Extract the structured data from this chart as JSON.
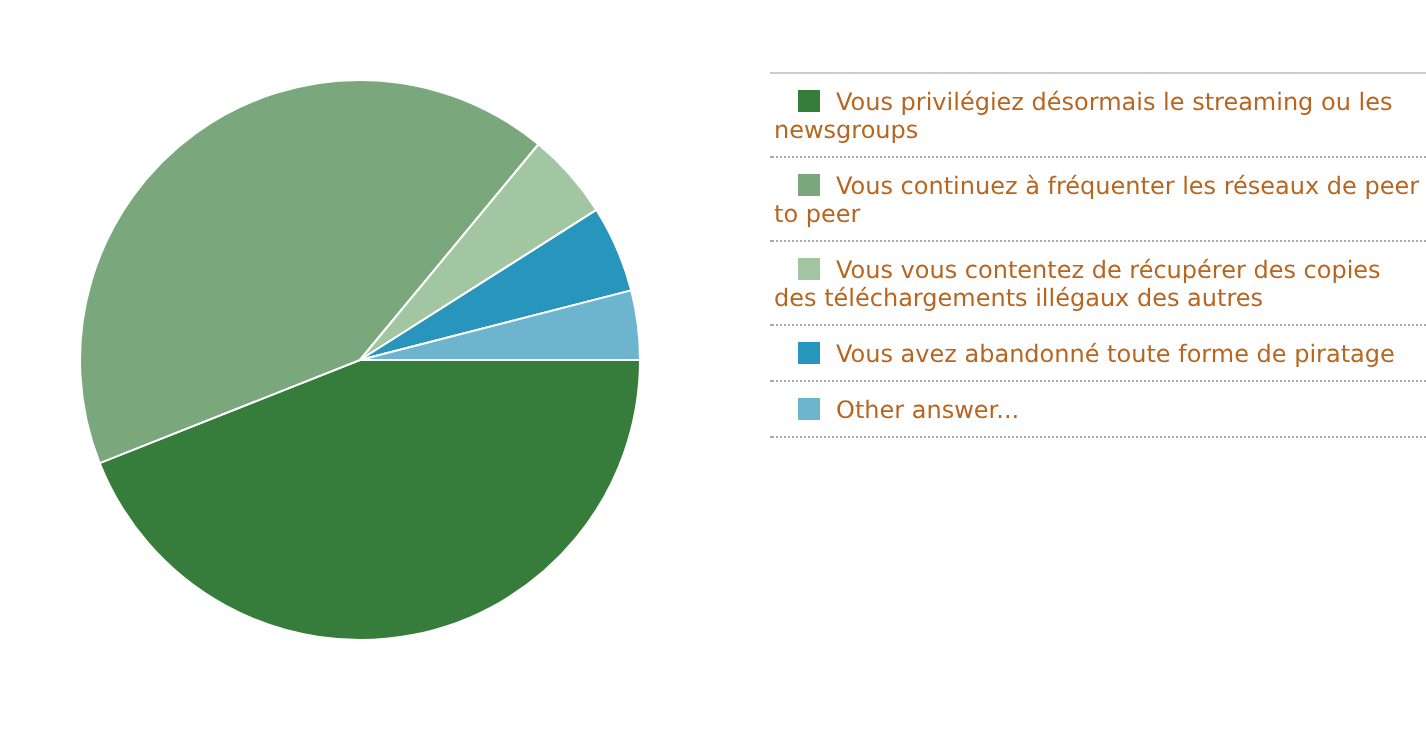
{
  "chart_data": {
    "type": "pie",
    "categories": [
      "Vous privilégiez désormais le streaming ou les newsgroups",
      "Vous continuez à fréquenter les réseaux de peer to peer",
      "Vous vous contentez de récupérer des copies des téléchargements illégaux des autres",
      "Vous avez abandonné toute forme de piratage",
      "Other answer..."
    ],
    "values": [
      44,
      42,
      5,
      5,
      4
    ],
    "colors": [
      "#367c3a",
      "#7aa87c",
      "#a3c6a2",
      "#2896bc",
      "#6db5cf"
    ],
    "legend": "right"
  }
}
